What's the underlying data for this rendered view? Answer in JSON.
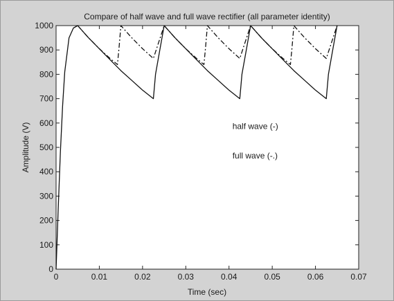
{
  "chart_data": {
    "type": "line",
    "title": "Compare of half wave and full wave rectifier (all parameter identity)",
    "xlabel": "Time (sec)",
    "ylabel": "Amplitude (V)",
    "xlim": [
      0,
      0.07
    ],
    "ylim": [
      0,
      1000
    ],
    "xticks": [
      0,
      0.01,
      0.02,
      0.03,
      0.04,
      0.05,
      0.06,
      0.07
    ],
    "xtick_labels": [
      "0",
      "0.01",
      "0.02",
      "0.03",
      "0.04",
      "0.05",
      "0.06",
      "0.07"
    ],
    "yticks": [
      0,
      100,
      200,
      300,
      400,
      500,
      600,
      700,
      800,
      900,
      1000
    ],
    "ytick_labels": [
      "0",
      "100",
      "200",
      "300",
      "400",
      "500",
      "600",
      "700",
      "800",
      "900",
      "1000"
    ],
    "grid": false,
    "legend_position": "center",
    "annotations": [
      {
        "text": "half wave (-)",
        "x": 0.0408,
        "y": 575
      },
      {
        "text": "full wave (-.)",
        "x": 0.0408,
        "y": 455
      }
    ],
    "series": [
      {
        "style": "solid",
        "points": [
          [
            0,
            0
          ],
          [
            0.0005,
            250
          ],
          [
            0.001,
            480
          ],
          [
            0.0015,
            670
          ],
          [
            0.002,
            810
          ],
          [
            0.003,
            950
          ],
          [
            0.004,
            990
          ],
          [
            0.005,
            1000
          ],
          [
            0.0075,
            950
          ],
          [
            0.01,
            905
          ],
          [
            0.0125,
            860
          ],
          [
            0.015,
            815
          ],
          [
            0.0175,
            775
          ],
          [
            0.02,
            735
          ],
          [
            0.0225,
            700
          ],
          [
            0.023,
            800
          ],
          [
            0.024,
            900
          ],
          [
            0.025,
            1000
          ],
          [
            0.0275,
            950
          ],
          [
            0.03,
            905
          ],
          [
            0.0325,
            860
          ],
          [
            0.035,
            815
          ],
          [
            0.0375,
            775
          ],
          [
            0.04,
            735
          ],
          [
            0.0425,
            700
          ],
          [
            0.043,
            800
          ],
          [
            0.044,
            900
          ],
          [
            0.045,
            1000
          ],
          [
            0.0475,
            950
          ],
          [
            0.05,
            905
          ],
          [
            0.0525,
            860
          ],
          [
            0.055,
            815
          ],
          [
            0.0575,
            775
          ],
          [
            0.06,
            735
          ],
          [
            0.0625,
            700
          ],
          [
            0.063,
            800
          ],
          [
            0.064,
            900
          ],
          [
            0.065,
            1000
          ]
        ]
      },
      {
        "style": "dashdot",
        "points": [
          [
            0.005,
            1000
          ],
          [
            0.0075,
            950
          ],
          [
            0.01,
            905
          ],
          [
            0.0125,
            865
          ],
          [
            0.0142,
            840
          ],
          [
            0.0146,
            915
          ],
          [
            0.015,
            1000
          ],
          [
            0.0175,
            950
          ],
          [
            0.02,
            905
          ],
          [
            0.0225,
            865
          ],
          [
            0.025,
            1000
          ],
          [
            0.0275,
            950
          ],
          [
            0.03,
            905
          ],
          [
            0.0325,
            865
          ],
          [
            0.0342,
            840
          ],
          [
            0.0346,
            915
          ],
          [
            0.035,
            1000
          ],
          [
            0.0375,
            950
          ],
          [
            0.04,
            905
          ],
          [
            0.0425,
            865
          ],
          [
            0.045,
            1000
          ],
          [
            0.0475,
            950
          ],
          [
            0.05,
            905
          ],
          [
            0.0525,
            865
          ],
          [
            0.0542,
            840
          ],
          [
            0.0546,
            915
          ],
          [
            0.055,
            1000
          ],
          [
            0.0575,
            950
          ],
          [
            0.06,
            905
          ],
          [
            0.0625,
            865
          ],
          [
            0.065,
            1000
          ]
        ]
      }
    ]
  }
}
